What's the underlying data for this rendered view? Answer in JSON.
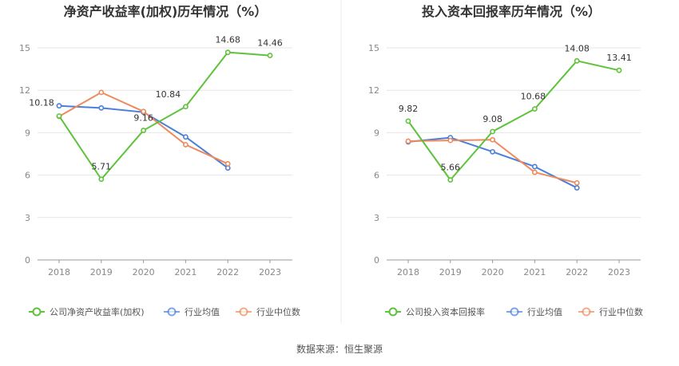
{
  "source": "数据来源：恒生聚源",
  "chart_data": [
    {
      "type": "line",
      "title": "净资产收益率(加权)历年情况（%）",
      "categories": [
        "2018",
        "2019",
        "2020",
        "2021",
        "2022",
        "2023"
      ],
      "ylim": [
        0,
        15
      ],
      "yticks": [
        0,
        3,
        6,
        9,
        12,
        15
      ],
      "grid": true,
      "legend_position": "bottom",
      "series": [
        {
          "name": "公司净资产收益率(加权)",
          "color": "#5ec23a",
          "values": [
            10.18,
            5.71,
            9.16,
            10.84,
            14.68,
            14.46
          ],
          "labels": [
            "10.18",
            "5.71",
            "9.16",
            "10.84",
            "14.68",
            "14.46"
          ]
        },
        {
          "name": "行业均值",
          "color": "#4a7fd9",
          "values": [
            10.9,
            10.75,
            10.45,
            8.7,
            6.5,
            null
          ]
        },
        {
          "name": "行业中位数",
          "color": "#ee8a5c",
          "values": [
            10.15,
            11.85,
            10.5,
            8.15,
            6.8,
            null
          ]
        }
      ]
    },
    {
      "type": "line",
      "title": "投入资本回报率历年情况（%）",
      "categories": [
        "2018",
        "2019",
        "2020",
        "2021",
        "2022",
        "2023"
      ],
      "ylim": [
        0,
        15
      ],
      "yticks": [
        0,
        3,
        6,
        9,
        12,
        15
      ],
      "grid": true,
      "legend_position": "bottom",
      "series": [
        {
          "name": "公司投入资本回报率",
          "color": "#5ec23a",
          "values": [
            9.82,
            5.66,
            9.08,
            10.68,
            14.08,
            13.41
          ],
          "labels": [
            "9.82",
            "5.66",
            "9.08",
            "10.68",
            "14.08",
            "13.41"
          ]
        },
        {
          "name": "行业均值",
          "color": "#4a7fd9",
          "values": [
            8.35,
            8.65,
            7.65,
            6.6,
            5.1,
            null
          ]
        },
        {
          "name": "行业中位数",
          "color": "#ee8a5c",
          "values": [
            8.4,
            8.45,
            8.5,
            6.2,
            5.45,
            null
          ]
        }
      ]
    }
  ]
}
